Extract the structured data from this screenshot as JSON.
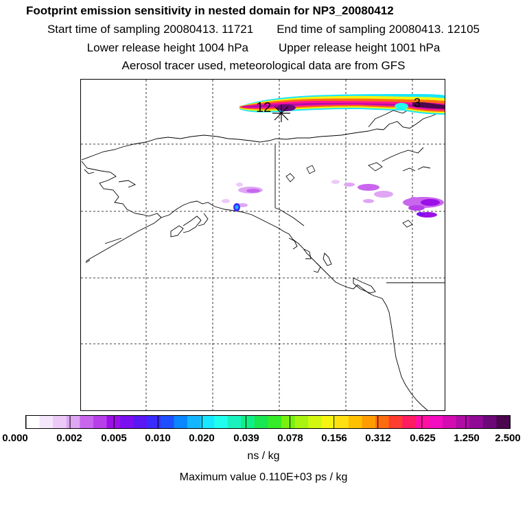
{
  "header": {
    "title": "Footprint emission sensitivity in nested domain for NP3_20080412",
    "start_time": "Start time of sampling 20080413. 11721",
    "end_time": "End time of sampling 20080413. 12105",
    "lower_release": "Lower release height 1004 hPa",
    "upper_release": "Upper release height 1001 hPa",
    "tracer_note": "Aerosol tracer used, meteorological data are from GFS"
  },
  "map": {
    "plume_labels": [
      "12",
      "3"
    ],
    "release_marker": "asterisk",
    "colors": {
      "coast": "#000000",
      "grid": "#000000"
    }
  },
  "legend": {
    "colors": [
      "#ffffff",
      "#f4e6fb",
      "#eccaf8",
      "#dfa6f4",
      "#c966ee",
      "#b740ea",
      "#9c10e8",
      "#7a10f0",
      "#5a18f4",
      "#3a2cff",
      "#1f50ff",
      "#0a86ff",
      "#14b6ff",
      "#19e6ff",
      "#20ffee",
      "#19f2be",
      "#10ee86",
      "#19e650",
      "#35ec28",
      "#78f010",
      "#a8f410",
      "#d2f810",
      "#f6f410",
      "#ffe010",
      "#ffc000",
      "#ff9c00",
      "#ff6c10",
      "#ff3c30",
      "#ff1c60",
      "#ff10a0",
      "#f40cc0",
      "#d20cb0",
      "#b00ca6",
      "#900a96",
      "#6c0878",
      "#4c0650"
    ],
    "tick_labels": [
      "0.000",
      "0.002",
      "0.005",
      "0.010",
      "0.020",
      "0.039",
      "0.078",
      "0.156",
      "0.312",
      "0.625",
      "1.250",
      "2.500"
    ],
    "units": "ns / kg",
    "max_value": "Maximum value  0.110E+03 ps / kg"
  }
}
